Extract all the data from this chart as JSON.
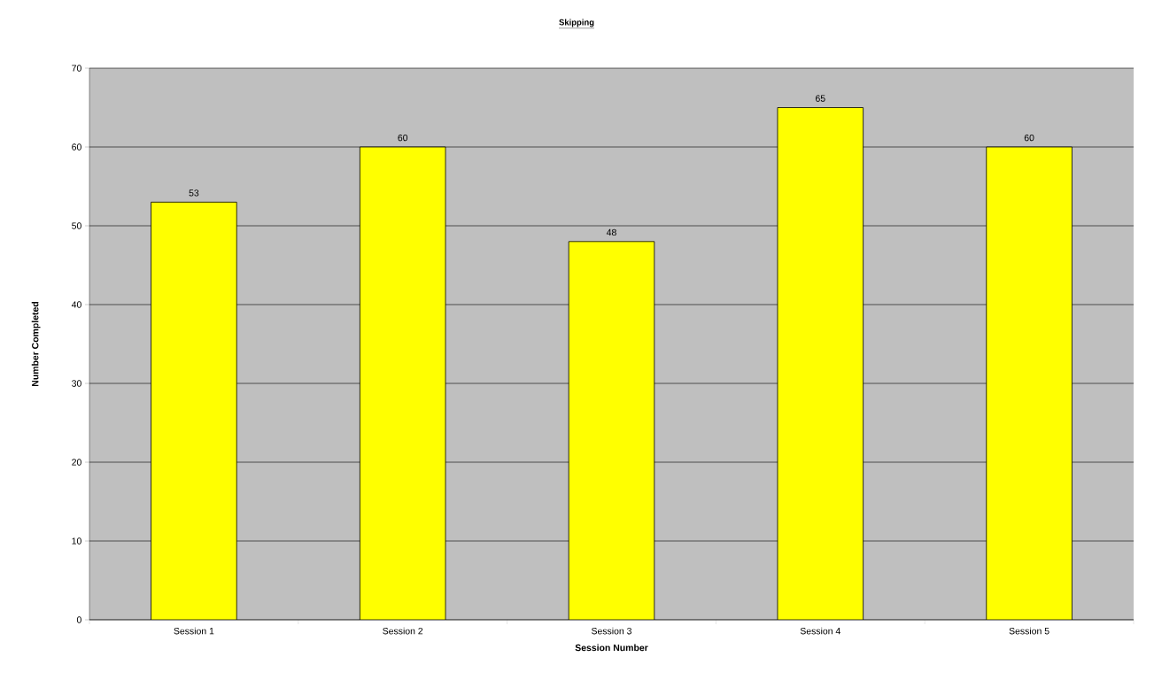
{
  "chart_data": {
    "type": "bar",
    "title": "Skipping",
    "xlabel": "Session Number",
    "ylabel": "Number Completed",
    "categories": [
      "Session 1",
      "Session 2",
      "Session 3",
      "Session 4",
      "Session 5"
    ],
    "values": [
      53,
      60,
      48,
      65,
      60
    ],
    "color": "#ffff00",
    "ylim": [
      0,
      70
    ],
    "yticks": [
      0,
      10,
      20,
      30,
      40,
      50,
      60,
      70
    ],
    "grid": "y",
    "data_labels": true
  }
}
